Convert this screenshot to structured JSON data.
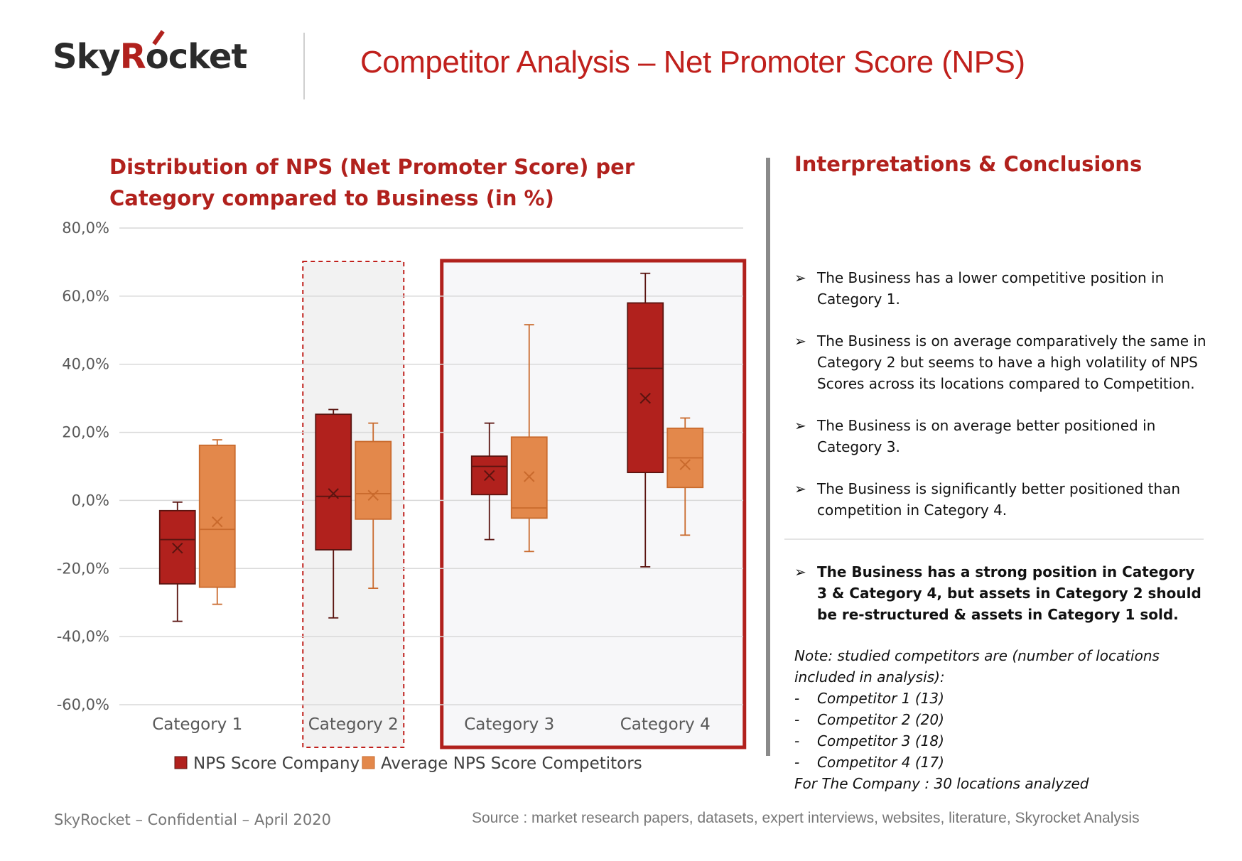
{
  "header": {
    "logo": {
      "part1": "Sky",
      "part2": "R",
      "part3": "ocket"
    },
    "title": "Competitor Analysis – Net Promoter Score (NPS)"
  },
  "chart_title": "Distribution of NPS (Net Promoter Score) per Category compared to Business (in %)",
  "chart_data": {
    "type": "box",
    "title": "Distribution of NPS (Net Promoter Score) per Category compared to Business (in %)",
    "categories": [
      "Category 1",
      "Category 2",
      "Category 3",
      "Category 4"
    ],
    "ylim": [
      -60,
      80
    ],
    "yticks": [
      80,
      60,
      40,
      20,
      0,
      -20,
      -40,
      -60
    ],
    "ytick_labels": [
      "80,0%",
      "60,0%",
      "40,0%",
      "20,0%",
      "0,0%",
      "-20,0%",
      "-40,0%",
      "-60,0%"
    ],
    "grid": true,
    "legend_position": "bottom",
    "series": [
      {
        "name": "NPS Score Company",
        "color": "#b1211d",
        "boxes": [
          {
            "min": -35.5,
            "q1": -24.5,
            "median": -11.5,
            "q3": -3,
            "max": -0.5,
            "mean": -14
          },
          {
            "min": -34.5,
            "q1": -14.5,
            "median": 1.2,
            "q3": 25.3,
            "max": 26.7,
            "mean": 2
          },
          {
            "min": -11.5,
            "q1": 1.7,
            "median": 10,
            "q3": 13,
            "max": 22.7,
            "mean": 7.3
          },
          {
            "min": -19.5,
            "q1": 8.2,
            "median": 38.8,
            "q3": 58,
            "max": 66.7,
            "mean": 30
          }
        ]
      },
      {
        "name": "Average NPS Score Competitors",
        "color": "#e3884b",
        "boxes": [
          {
            "min": -30.5,
            "q1": -25.5,
            "median": -8.5,
            "q3": 16.2,
            "max": 17.8,
            "mean": -6.3
          },
          {
            "min": -25.8,
            "q1": -5.5,
            "median": 2.0,
            "q3": 17.3,
            "max": 22.7,
            "mean": 1.5
          },
          {
            "min": -15,
            "q1": -5.2,
            "median": -2.2,
            "q3": 18.6,
            "max": 51.6,
            "mean": 7.0
          },
          {
            "min": -10.2,
            "q1": 3.8,
            "median": 12.5,
            "q3": 21.2,
            "max": 24.2,
            "mean": 10.5
          }
        ]
      }
    ]
  },
  "right": {
    "title": "Interpretations & Conclusions",
    "bullets": [
      "The Business has a lower competitive position in Category 1.",
      "The Business is on average comparatively the same in Category 2 but seems to have a high volatility of NPS Scores across its locations compared to Competition.",
      "The Business is on average better positioned in Category 3.",
      "The Business is significantly better positioned than competition in Category 4."
    ],
    "conclusion": "The Business has a strong position in Category 3 & Category 4, but assets in Category 2 should be re-structured & assets in Category 1 sold.",
    "note_intro": "Note: studied competitors are (number of locations included in analysis):",
    "competitors": [
      "Competitor 1 (13)",
      "Competitor 2 (20)",
      "Competitor 3 (18)",
      "Competitor 4 (17)"
    ],
    "note_footer": "For The Company : 30 locations analyzed"
  },
  "footer": {
    "left": "SkyRocket – Confidential – April 2020",
    "source": "Source : market research papers, datasets, expert interviews, websites, literature, Skyrocket Analysis"
  },
  "arrow": "➢",
  "dash": "-"
}
